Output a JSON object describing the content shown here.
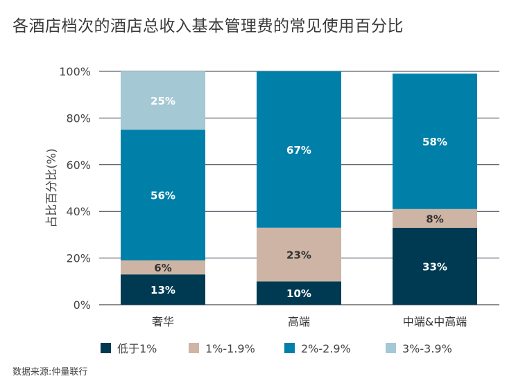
{
  "chart_data": {
    "type": "bar",
    "stacked": true,
    "title": "各酒店档次的酒店总收入基本管理费的常见使用百分比",
    "ylabel": "占比百分比(%)",
    "xlabel": "",
    "ylim": [
      0,
      100
    ],
    "yticks": [
      "0%",
      "20%",
      "40%",
      "60%",
      "80%",
      "100%"
    ],
    "ytick_values": [
      0,
      20,
      40,
      60,
      80,
      100
    ],
    "categories": [
      "奢华",
      "高端",
      "中端&中高端"
    ],
    "series": [
      {
        "name": "低于1%",
        "color": "#003a52",
        "label_color": "#ffffff",
        "values": [
          13,
          10,
          33
        ],
        "labels": [
          "13%",
          "10%",
          "33%"
        ]
      },
      {
        "name": "1%-1.9%",
        "color": "#cdb4a4",
        "label_color": "#333333",
        "values": [
          6,
          23,
          8
        ],
        "labels": [
          "6%",
          "23%",
          "8%"
        ]
      },
      {
        "name": "2%-2.9%",
        "color": "#0080a8",
        "label_color": "#ffffff",
        "values": [
          56,
          67,
          58
        ],
        "labels": [
          "56%",
          "67%",
          "58%"
        ]
      },
      {
        "name": "3%-3.9%",
        "color": "#a4c8d4",
        "label_color": "#ffffff",
        "values": [
          25,
          0,
          0
        ],
        "labels": [
          "25%",
          "",
          ""
        ]
      }
    ],
    "grid": true,
    "legend_position": "bottom"
  },
  "source": "数据来源:仲量联行"
}
